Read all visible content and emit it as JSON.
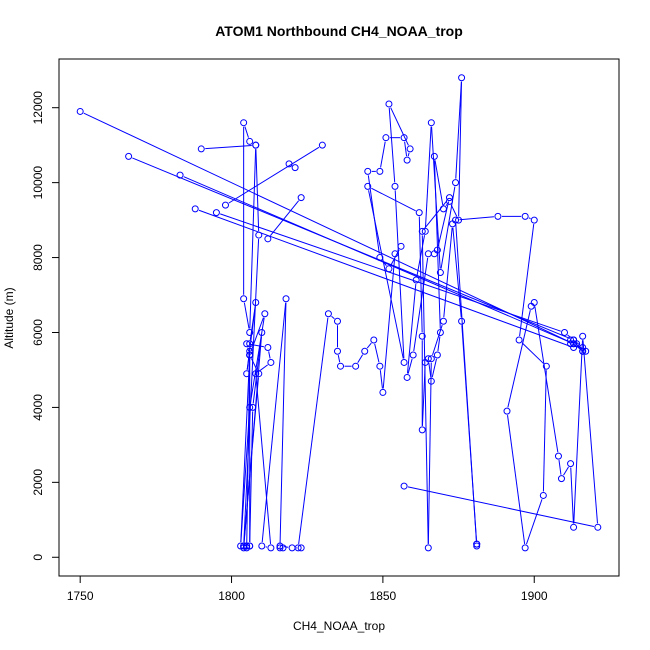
{
  "chart_data": {
    "type": "line",
    "title": "ATOM1 Northbound CH4_NOAA_trop",
    "xlabel": "CH4_NOAA_trop",
    "ylabel": "Altitude (m)",
    "xlim": [
      1743,
      1928
    ],
    "ylim": [
      -500,
      13300
    ],
    "x_ticks": [
      1750,
      1800,
      1850,
      1900
    ],
    "y_ticks": [
      0,
      2000,
      4000,
      6000,
      8000,
      10000,
      12000
    ],
    "series_color": "#0000ff",
    "marker": "open-circle",
    "x": [
      1750,
      1913,
      1917,
      1912,
      1914,
      1766,
      1913,
      1916,
      1783,
      1913,
      1916,
      1916,
      1788,
      1913,
      1913,
      1795,
      1910,
      1913,
      1912,
      1798,
      1830,
      1819,
      1821,
      1823,
      1812,
      1790,
      1808,
      1806,
      1804,
      1804,
      1806,
      1808,
      1809,
      1804,
      1806,
      1807,
      1810,
      1804,
      1806,
      1806,
      1808,
      1805,
      1806,
      1806,
      1809,
      1804,
      1805,
      1805,
      1805,
      1806,
      1803,
      1806,
      1811,
      1806,
      1805,
      1812,
      1813,
      1808,
      1813,
      1810,
      1818,
      1816,
      1817,
      1816,
      1820,
      1823,
      1822,
      1832,
      1835,
      1835,
      1836,
      1841,
      1844,
      1847,
      1849,
      1850,
      1854,
      1856,
      1852,
      1849,
      1845,
      1849,
      1851,
      1857,
      1858,
      1859,
      1852,
      1854,
      1857,
      1845,
      1862,
      1863,
      1863,
      1864,
      1865,
      1866,
      1868,
      1869,
      1867,
      1870,
      1872,
      1875,
      1876,
      1874,
      1869,
      1866,
      1864,
      1861,
      1858,
      1860,
      1865,
      1867,
      1868,
      1872,
      1863,
      1865,
      1866,
      1870,
      1873,
      1876,
      1881,
      1881,
      1874,
      1888,
      1897,
      1900,
      1895,
      1904,
      1903,
      1897,
      1891,
      1899,
      1900,
      1908,
      1909,
      1912,
      1913,
      1916,
      1921,
      1857,
      1881
    ],
    "y": [
      11900,
      5700,
      5500,
      5800,
      5700,
      10700,
      5800,
      5600,
      10200,
      5700,
      5500,
      5500,
      9300,
      5600,
      5800,
      9200,
      6000,
      5800,
      5700,
      9400,
      11000,
      10500,
      10400,
      9600,
      8500,
      10900,
      11000,
      11100,
      11600,
      6900,
      6000,
      11000,
      8600,
      300,
      300,
      4000,
      6000,
      250,
      300,
      5700,
      6800,
      4900,
      5500,
      5400,
      4900,
      300,
      300,
      300,
      250,
      5400,
      300,
      4000,
      6500,
      5400,
      5700,
      5600,
      5200,
      4900,
      250,
      300,
      6900,
      250,
      250,
      300,
      250,
      250,
      250,
      6500,
      6300,
      5500,
      5100,
      5100,
      5500,
      5800,
      5100,
      4400,
      8100,
      8300,
      7700,
      8000,
      10300,
      10300,
      11200,
      11200,
      10600,
      10900,
      12100,
      9900,
      5200,
      9900,
      9200,
      5900,
      3400,
      5200,
      5300,
      4700,
      5400,
      6000,
      10700,
      9300,
      9500,
      9000,
      12800,
      10000,
      7600,
      11600,
      8700,
      7400,
      4800,
      5400,
      8100,
      8100,
      8200,
      9600,
      8700,
      250,
      5300,
      6300,
      8900,
      6300,
      350,
      300,
      9000,
      9100,
      9100,
      9000,
      5800,
      5100,
      1650,
      250,
      3900,
      6700,
      6800,
      2700,
      2100,
      2500,
      800,
      5900,
      800,
      1900,
      350
    ],
    "path_edges": [
      [
        0,
        1
      ],
      [
        1,
        2
      ],
      [
        2,
        3
      ],
      [
        3,
        4
      ],
      [
        5,
        6
      ],
      [
        6,
        7
      ],
      [
        8,
        9
      ],
      [
        9,
        10
      ],
      [
        10,
        11
      ],
      [
        12,
        13
      ],
      [
        13,
        14
      ],
      [
        15,
        16
      ],
      [
        16,
        17
      ],
      [
        17,
        18
      ],
      [
        19,
        20
      ],
      [
        21,
        22
      ],
      [
        23,
        24
      ],
      [
        25,
        26
      ],
      [
        26,
        27
      ],
      [
        27,
        28
      ],
      [
        28,
        29
      ],
      [
        29,
        30
      ],
      [
        30,
        31
      ],
      [
        31,
        32
      ],
      [
        32,
        33
      ],
      [
        33,
        34
      ],
      [
        34,
        35
      ],
      [
        35,
        36
      ],
      [
        36,
        37
      ],
      [
        37,
        38
      ],
      [
        38,
        39
      ],
      [
        39,
        40
      ],
      [
        40,
        41
      ],
      [
        41,
        42
      ],
      [
        42,
        43
      ],
      [
        43,
        44
      ],
      [
        44,
        45
      ],
      [
        45,
        46
      ],
      [
        46,
        47
      ],
      [
        47,
        48
      ],
      [
        48,
        49
      ],
      [
        49,
        50
      ],
      [
        50,
        51
      ],
      [
        51,
        52
      ],
      [
        52,
        53
      ],
      [
        53,
        54
      ],
      [
        54,
        55
      ],
      [
        55,
        56
      ],
      [
        56,
        57
      ],
      [
        57,
        58
      ],
      [
        58,
        59
      ],
      [
        59,
        60
      ],
      [
        60,
        61
      ],
      [
        61,
        62
      ],
      [
        62,
        63
      ],
      [
        63,
        64
      ],
      [
        64,
        65
      ],
      [
        65,
        66
      ],
      [
        66,
        67
      ],
      [
        67,
        68
      ],
      [
        68,
        69
      ],
      [
        69,
        70
      ],
      [
        70,
        71
      ],
      [
        71,
        72
      ],
      [
        72,
        73
      ],
      [
        73,
        74
      ],
      [
        74,
        75
      ],
      [
        75,
        76
      ],
      [
        76,
        77
      ],
      [
        77,
        78
      ],
      [
        78,
        79
      ],
      [
        79,
        80
      ],
      [
        80,
        81
      ],
      [
        81,
        82
      ],
      [
        82,
        83
      ],
      [
        83,
        84
      ],
      [
        84,
        85
      ],
      [
        85,
        86
      ],
      [
        86,
        87
      ],
      [
        87,
        88
      ],
      [
        88,
        89
      ],
      [
        89,
        90
      ],
      [
        90,
        91
      ],
      [
        91,
        92
      ],
      [
        92,
        93
      ],
      [
        93,
        94
      ],
      [
        94,
        95
      ],
      [
        95,
        96
      ],
      [
        96,
        97
      ],
      [
        97,
        98
      ],
      [
        98,
        99
      ],
      [
        99,
        100
      ],
      [
        100,
        101
      ],
      [
        101,
        102
      ],
      [
        102,
        103
      ],
      [
        103,
        104
      ],
      [
        104,
        105
      ],
      [
        105,
        106
      ],
      [
        106,
        107
      ],
      [
        107,
        108
      ],
      [
        108,
        109
      ],
      [
        109,
        110
      ],
      [
        110,
        111
      ],
      [
        111,
        112
      ],
      [
        112,
        113
      ],
      [
        113,
        114
      ],
      [
        114,
        115
      ],
      [
        115,
        116
      ],
      [
        116,
        117
      ],
      [
        117,
        118
      ],
      [
        118,
        119
      ],
      [
        119,
        120
      ],
      [
        120,
        121
      ],
      [
        121,
        122
      ],
      [
        122,
        123
      ],
      [
        123,
        124
      ],
      [
        124,
        125
      ],
      [
        125,
        126
      ],
      [
        126,
        127
      ],
      [
        127,
        128
      ],
      [
        128,
        129
      ],
      [
        129,
        130
      ],
      [
        130,
        131
      ],
      [
        131,
        132
      ],
      [
        132,
        133
      ],
      [
        133,
        134
      ],
      [
        134,
        135
      ],
      [
        135,
        136
      ],
      [
        136,
        137
      ],
      [
        137,
        138
      ],
      [
        138,
        139
      ],
      [
        140,
        141
      ]
    ]
  }
}
